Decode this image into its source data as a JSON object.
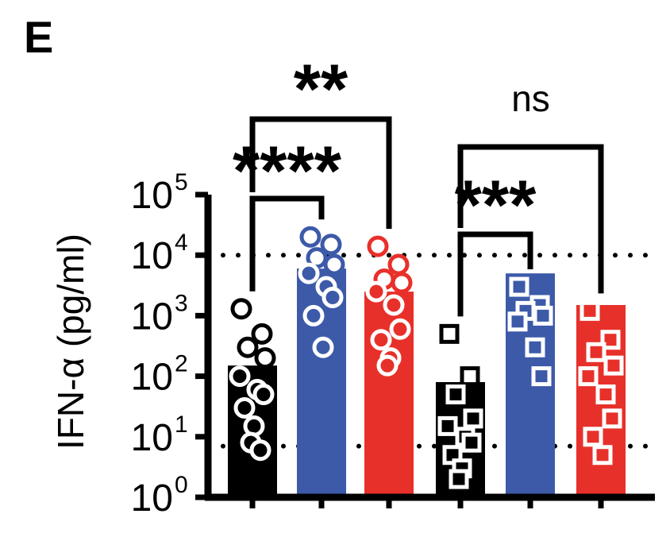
{
  "panel_label": "E",
  "chart_data": {
    "type": "bar",
    "ylabel": "IFN-α (pg/ml)",
    "yscale": "log",
    "ylim": [
      1,
      100000
    ],
    "yticks": [
      {
        "value": 1,
        "base": "10",
        "exp": "0"
      },
      {
        "value": 10,
        "base": "10",
        "exp": "1"
      },
      {
        "value": 100,
        "base": "10",
        "exp": "2"
      },
      {
        "value": 1000,
        "base": "10",
        "exp": "3"
      },
      {
        "value": 10000,
        "base": "10",
        "exp": "4"
      },
      {
        "value": 100000,
        "base": "10",
        "exp": "5"
      }
    ],
    "reference_lines": [
      10000,
      7
    ],
    "bar_colors": [
      "#000000",
      "#3c5aa8",
      "#e8302a",
      "#000000",
      "#3c5aa8",
      "#e8302a"
    ],
    "bars": [
      {
        "value": 150,
        "marker": "circle",
        "points": [
          1300,
          500,
          300,
          200,
          100,
          60,
          50,
          30,
          15,
          8,
          6
        ]
      },
      {
        "value": 6000,
        "marker": "circle",
        "points": [
          20000,
          15000,
          9000,
          7000,
          5000,
          3000,
          2000,
          1000,
          300
        ]
      },
      {
        "value": 2500,
        "marker": "circle",
        "points": [
          14000,
          7000,
          4000,
          3500,
          2500,
          1500,
          600,
          400,
          200,
          150
        ]
      },
      {
        "value": 80,
        "marker": "square",
        "points": [
          500,
          100,
          50,
          20,
          15,
          10,
          8,
          5,
          3,
          2
        ]
      },
      {
        "value": 5000,
        "marker": "square",
        "points": [
          3000,
          1500,
          1200,
          1000,
          800,
          300,
          100
        ]
      },
      {
        "value": 1500,
        "marker": "square",
        "points": [
          1200,
          400,
          250,
          150,
          100,
          50,
          20,
          10,
          5
        ]
      }
    ],
    "comparisons": [
      {
        "label": "****",
        "from": 0,
        "to": 1
      },
      {
        "label": "**",
        "from": 0,
        "to": 2
      },
      {
        "label": "***",
        "from": 3,
        "to": 4
      },
      {
        "label": "ns",
        "from": 3,
        "to": 5
      }
    ]
  }
}
